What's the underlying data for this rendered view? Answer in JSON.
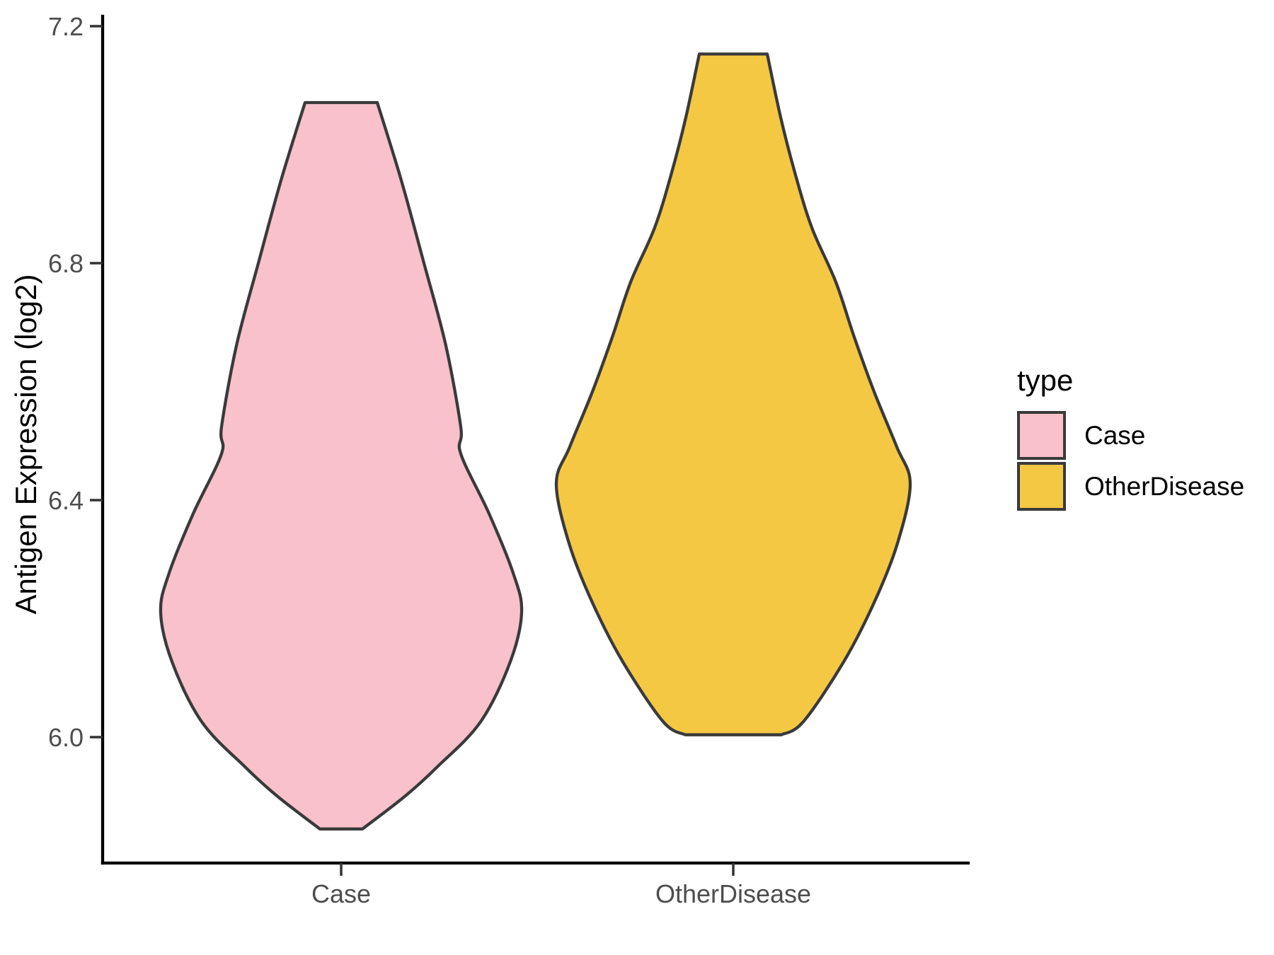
{
  "figure": {
    "background": "#FFFFFF"
  },
  "axes": {
    "y_title": "Antigen Expression (log2)",
    "axis_line_color": "#000000",
    "tick_mark_color": "#333333",
    "tick_label_color": "#4D4D4D"
  },
  "legend": {
    "title": "type",
    "items": [
      {
        "label": "Case",
        "color": "#F8C1CC"
      },
      {
        "label": "OtherDisease",
        "color": "#F5C844"
      }
    ]
  },
  "chart_data": {
    "type": "violin",
    "title": "",
    "xlabel": "",
    "ylabel": "Antigen Expression (log2)",
    "grid": "off",
    "legend_position": "right",
    "x_categories": [
      "Case",
      "OtherDisease"
    ],
    "x_tick_labels": [
      "Case",
      "OtherDisease"
    ],
    "y_ticks": [
      7.2,
      6.8,
      6.4,
      6.0
    ],
    "y_tick_labels": [
      "7.2",
      "6.8",
      "6.4",
      "6.0"
    ],
    "y_range_shown": [
      5.79,
      7.22
    ],
    "series": [
      {
        "name": "Case",
        "fill": "#F8C1CC",
        "outline": "#3A3A3A",
        "y_min": 5.85,
        "y_max": 7.07,
        "profile": [
          [
            7.071,
            0.2
          ],
          [
            6.94,
            0.333
          ],
          [
            6.8,
            0.459
          ],
          [
            6.661,
            0.58
          ],
          [
            6.523,
            0.663
          ],
          [
            6.478,
            0.663
          ],
          [
            6.377,
            0.82
          ],
          [
            6.277,
            0.953
          ],
          [
            6.211,
            1.0
          ],
          [
            6.127,
            0.937
          ],
          [
            6.026,
            0.773
          ],
          [
            5.951,
            0.537
          ],
          [
            5.9,
            0.353
          ],
          [
            5.845,
            0.118
          ]
        ]
      },
      {
        "name": "OtherDisease",
        "fill": "#F5C844",
        "outline": "#3A3A3A",
        "y_min": 6.0,
        "y_max": 7.15,
        "profile": [
          [
            7.153,
            0.192
          ],
          [
            7.046,
            0.268
          ],
          [
            6.953,
            0.348
          ],
          [
            6.86,
            0.444
          ],
          [
            6.768,
            0.58
          ],
          [
            6.675,
            0.684
          ],
          [
            6.583,
            0.796
          ],
          [
            6.49,
            0.924
          ],
          [
            6.428,
            1.0
          ],
          [
            6.327,
            0.928
          ],
          [
            6.227,
            0.796
          ],
          [
            6.127,
            0.624
          ],
          [
            6.026,
            0.396
          ],
          [
            6.004,
            0.272
          ]
        ]
      }
    ]
  }
}
